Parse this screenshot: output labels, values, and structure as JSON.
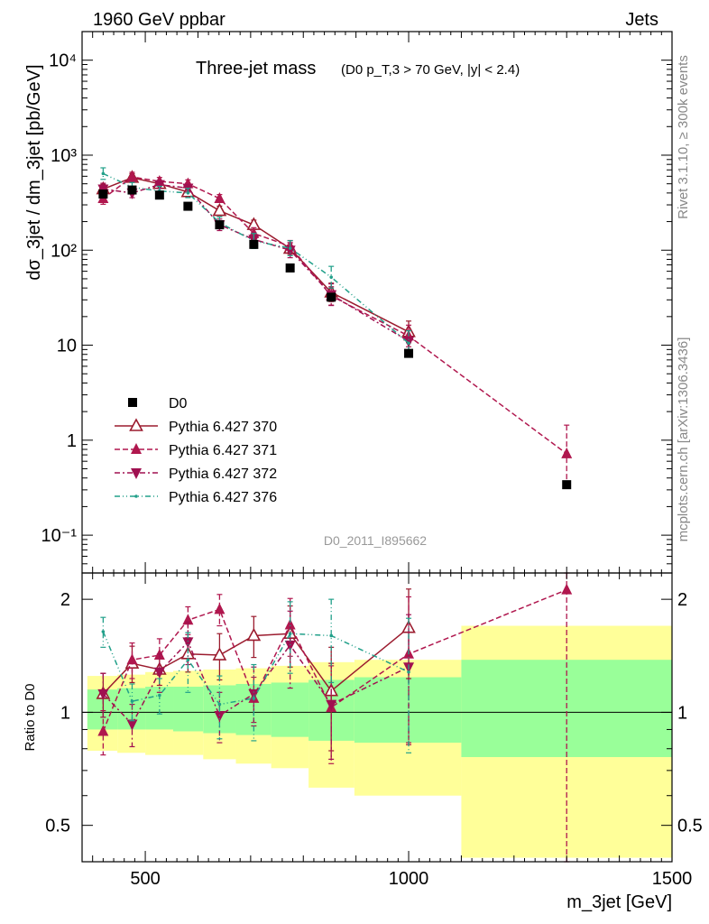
{
  "header": {
    "left_label": "1960 GeV ppbar",
    "right_label": "Jets"
  },
  "side_labels": {
    "rivet": "Rivet 3.1.10, ≥ 300k events",
    "mcplots": "mcplots.cern.ch [arXiv:1306.3436]"
  },
  "chart_data": [
    {
      "panel": "main",
      "type": "line",
      "title": "Three-jet mass",
      "subtitle": "(D0 p_T,3 > 70 GeV, |y| < 2.4)",
      "watermark": "D0_2011_I895662",
      "xlabel": "m_3jet [GeV]",
      "ylabel": "dσ_3jet / dm_3jet [pb/GeV]",
      "yscale": "log",
      "xlim": [
        380,
        1500
      ],
      "ylim": [
        0.04,
        20000
      ],
      "ytick_labels": [
        "10⁻¹",
        "1",
        "10",
        "10²",
        "10³",
        "10⁴"
      ],
      "legend_position": "left",
      "data_label": "D0",
      "data": {
        "x": [
          420,
          475,
          527,
          581,
          641,
          706,
          775,
          853,
          1000,
          1300
        ],
        "y": [
          390,
          430,
          380,
          290,
          185,
          115,
          65,
          32,
          8.2,
          0.34
        ]
      },
      "series": [
        {
          "name": "Pythia 6.427 370",
          "color": "#9b1b2e",
          "x": [
            420,
            475,
            527,
            581,
            641,
            706,
            775,
            853,
            1000
          ],
          "y": [
            440,
            580,
            500,
            410,
            260,
            185,
            104,
            36,
            13.8
          ],
          "err": [
            0.12,
            0.1,
            0.08,
            0.1,
            0.12,
            0.12,
            0.15,
            0.25,
            0.3
          ]
        },
        {
          "name": "Pythia 6.427 371",
          "color": "#b0174e",
          "x": [
            420,
            475,
            527,
            581,
            641,
            706,
            775,
            853,
            1000,
            1300
          ],
          "y": [
            350,
            590,
            530,
            500,
            350,
            150,
            110,
            33,
            12.5,
            0.72
          ],
          "err": [
            0.15,
            0.12,
            0.1,
            0.1,
            0.1,
            0.15,
            0.15,
            0.25,
            0.3,
            1.0
          ]
        },
        {
          "name": "Pythia 6.427 372",
          "color": "#a01050",
          "x": [
            420,
            475,
            527,
            581,
            641,
            706,
            775,
            853,
            1000
          ],
          "y": [
            440,
            400,
            490,
            450,
            185,
            130,
            100,
            34,
            11
          ],
          "err": [
            0.15,
            0.12,
            0.1,
            0.1,
            0.15,
            0.18,
            0.2,
            0.3,
            0.3
          ]
        },
        {
          "name": "Pythia 6.427 376",
          "color": "#22a08a",
          "x": [
            420,
            475,
            527,
            581,
            641,
            706,
            775,
            853,
            1000
          ],
          "y": [
            640,
            460,
            420,
            400,
            195,
            125,
            105,
            52,
            10.5
          ],
          "err": [
            0.15,
            0.12,
            0.12,
            0.12,
            0.15,
            0.2,
            0.2,
            0.3,
            0.35
          ]
        }
      ]
    },
    {
      "panel": "ratio",
      "type": "line",
      "ylabel": "Ratio to D0",
      "xlabel": "m_3jet [GeV]",
      "xlim": [
        380,
        1500
      ],
      "ylim": [
        0.4,
        2.35
      ],
      "ytick_labels": [
        "0.5",
        "1",
        "2"
      ],
      "xtick_labels": [
        "500",
        "1000",
        "1500"
      ],
      "bands": [
        {
          "x0": 390,
          "x1": 447,
          "stat": [
            0.9,
            1.15
          ],
          "tot": [
            0.79,
            1.25
          ]
        },
        {
          "x0": 447,
          "x1": 500,
          "stat": [
            0.9,
            1.16
          ],
          "tot": [
            0.78,
            1.26
          ]
        },
        {
          "x0": 500,
          "x1": 553,
          "stat": [
            0.9,
            1.17
          ],
          "tot": [
            0.77,
            1.28
          ]
        },
        {
          "x0": 553,
          "x1": 610,
          "stat": [
            0.89,
            1.17
          ],
          "tot": [
            0.77,
            1.29
          ]
        },
        {
          "x0": 610,
          "x1": 672,
          "stat": [
            0.88,
            1.18
          ],
          "tot": [
            0.75,
            1.3
          ]
        },
        {
          "x0": 672,
          "x1": 739,
          "stat": [
            0.87,
            1.19
          ],
          "tot": [
            0.73,
            1.31
          ]
        },
        {
          "x0": 739,
          "x1": 810,
          "stat": [
            0.86,
            1.2
          ],
          "tot": [
            0.71,
            1.33
          ]
        },
        {
          "x0": 810,
          "x1": 897,
          "stat": [
            0.84,
            1.22
          ],
          "tot": [
            0.63,
            1.36
          ]
        },
        {
          "x0": 897,
          "x1": 1100,
          "stat": [
            0.83,
            1.24
          ],
          "tot": [
            0.6,
            1.38
          ]
        },
        {
          "x0": 1100,
          "x1": 1500,
          "stat": [
            0.76,
            1.38
          ],
          "tot": [
            0.41,
            1.7
          ]
        }
      ],
      "series": [
        {
          "name": "Pythia 6.427 370",
          "x": [
            420,
            475,
            527,
            581,
            641,
            706,
            775,
            853,
            1000
          ],
          "y": [
            1.12,
            1.35,
            1.3,
            1.43,
            1.42,
            1.6,
            1.62,
            1.14,
            1.68
          ],
          "err": [
            0.15,
            0.15,
            0.12,
            0.15,
            0.2,
            0.2,
            0.3,
            0.35,
            0.45
          ]
        },
        {
          "name": "Pythia 6.427 371",
          "x": [
            420,
            475,
            527,
            581,
            641,
            706,
            775,
            853,
            1000,
            1300
          ],
          "y": [
            0.89,
            1.38,
            1.42,
            1.76,
            1.88,
            1.09,
            1.71,
            1.03,
            1.43,
            2.12
          ],
          "err": [
            0.12,
            0.15,
            0.15,
            0.15,
            0.18,
            0.15,
            0.3,
            0.3,
            0.6,
            2.0
          ]
        },
        {
          "name": "Pythia 6.427 372",
          "x": [
            420,
            475,
            527,
            581,
            641,
            706,
            775,
            853,
            1000
          ],
          "y": [
            1.12,
            0.93,
            1.28,
            1.54,
            0.98,
            1.12,
            1.51,
            1.05,
            1.32
          ],
          "err": [
            0.15,
            0.12,
            0.15,
            0.2,
            0.15,
            0.2,
            0.35,
            0.3,
            0.5
          ]
        },
        {
          "name": "Pythia 6.427 376",
          "x": [
            420,
            475,
            527,
            581,
            641,
            706,
            775,
            853,
            1000
          ],
          "y": [
            1.64,
            1.07,
            1.11,
            1.38,
            1.05,
            1.09,
            1.62,
            1.6,
            1.28
          ],
          "err": [
            0.15,
            0.12,
            0.12,
            0.25,
            0.2,
            0.25,
            0.35,
            0.4,
            0.5
          ]
        }
      ]
    }
  ]
}
